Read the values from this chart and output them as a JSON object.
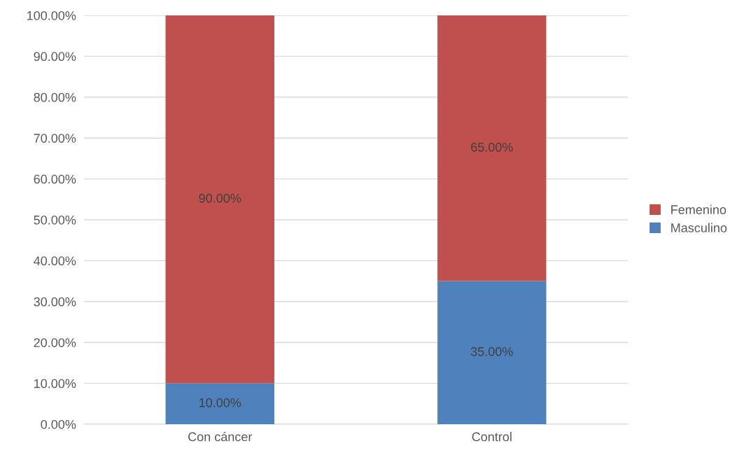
{
  "chart_data": {
    "type": "bar",
    "stacked": true,
    "categories": [
      "Con cáncer",
      "Control"
    ],
    "series": [
      {
        "name": "Masculino",
        "color": "#4f81bd",
        "values": [
          10,
          35
        ],
        "value_labels": [
          "10.00%",
          "35.00%"
        ]
      },
      {
        "name": "Femenino",
        "color": "#c0504d",
        "values": [
          90,
          65
        ],
        "value_labels": [
          "90.00%",
          "65.00%"
        ]
      }
    ],
    "ylim": [
      0,
      100
    ],
    "yticks": [
      {
        "value": 0,
        "label": "0.00%"
      },
      {
        "value": 10,
        "label": "10.00%"
      },
      {
        "value": 20,
        "label": "20.00%"
      },
      {
        "value": 30,
        "label": "30.00%"
      },
      {
        "value": 40,
        "label": "40.00%"
      },
      {
        "value": 50,
        "label": "50.00%"
      },
      {
        "value": 60,
        "label": "60.00%"
      },
      {
        "value": 70,
        "label": "70.00%"
      },
      {
        "value": 80,
        "label": "80.00%"
      },
      {
        "value": 90,
        "label": "90.00%"
      },
      {
        "value": 100,
        "label": "100.00%"
      }
    ],
    "grid": "y",
    "legend": "right"
  }
}
